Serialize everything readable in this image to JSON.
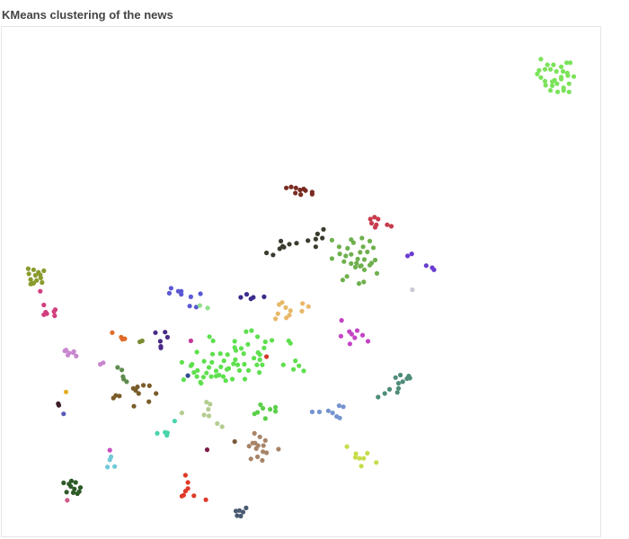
{
  "chart_data": {
    "type": "scatter",
    "title": "KMeans clustering of the news",
    "xlabel": "",
    "ylabel": "",
    "xlim": [
      0,
      100
    ],
    "ylim": [
      0,
      100
    ],
    "grid": false,
    "legend": "none",
    "series": [
      {
        "color": "#7be35a",
        "x": [
          93.2,
          94.1,
          94.7,
          89.8,
          90.9,
          91.9,
          93.5,
          94.2,
          89.5,
          90.5,
          91.4,
          92.4,
          93.2,
          94.3,
          95.3,
          89.8,
          90.5,
          91.7,
          92.1,
          93.2,
          94.5,
          90.6,
          91.7,
          92.5,
          93.6,
          91.4,
          92.6,
          93.6,
          94.5,
          89.2
        ],
        "y": [
          92.2,
          93.0,
          93.0,
          93.7,
          92.6,
          92.6,
          91.3,
          91.0,
          91.5,
          91.7,
          91.7,
          91.3,
          90.2,
          90.5,
          90.3,
          90.1,
          89.4,
          89.3,
          89.6,
          89.8,
          88.9,
          88.6,
          88.5,
          88.9,
          88.1,
          87.6,
          87.3,
          87.6,
          87.3,
          90.8
        ]
      },
      {
        "color": "#7a2c22",
        "x": [
          47.4,
          48.2,
          49.0,
          49.7,
          50.3,
          48.9,
          49.8,
          50.6,
          51.7,
          51.7
        ],
        "y": [
          68.5,
          68.7,
          68.5,
          68.1,
          68.3,
          67.5,
          67.2,
          68.0,
          67.7,
          67.3
        ]
      },
      {
        "color": "#c83c4e",
        "x": [
          61.4,
          62.1,
          62.7,
          61.6,
          62.4,
          64.2,
          64.9,
          62.2
        ],
        "y": [
          62.4,
          62.8,
          62.4,
          61.6,
          61.3,
          61.3,
          61.0,
          60.8
        ]
      },
      {
        "color": "#3a3a2e",
        "x": [
          53.6,
          52.6,
          52.3,
          53.4,
          51.0,
          52.3,
          49.1,
          47.9,
          46.8,
          46.3,
          47.0,
          46.5,
          44.1,
          45.2
        ],
        "y": [
          60.4,
          59.5,
          58.5,
          58.7,
          58.2,
          57.0,
          57.7,
          57.5,
          57.1,
          56.6,
          56.9,
          58.1,
          55.8,
          55.4
        ]
      },
      {
        "color": "#6fb04e",
        "x": [
          55.0,
          56.2,
          58.2,
          60.0,
          61.3,
          58.6,
          60.2,
          57.6,
          59.7,
          60.9,
          56.3,
          57.3,
          58.2,
          59.3,
          60.4,
          61.9,
          55.0,
          57.0,
          58.2,
          59.1,
          59.9,
          61.3,
          62.2,
          58.9,
          59.7,
          60.4,
          62.5,
          57.5,
          56.8,
          59.5,
          60.3,
          61.6
        ],
        "y": [
          58.3,
          57.0,
          58.4,
          58.7,
          58.1,
          57.8,
          57.0,
          56.7,
          55.9,
          56.0,
          55.6,
          55.2,
          55.5,
          54.6,
          54.5,
          56.8,
          54.7,
          54.1,
          53.7,
          53.8,
          53.3,
          53.4,
          54.4,
          53.0,
          53.2,
          52.5,
          51.8,
          51.2,
          50.5,
          49.8,
          50.1,
          53.8
        ]
      },
      {
        "color": "#6a3cd1",
        "x": [
          67.6,
          68.3,
          70.7,
          71.7,
          72.0
        ],
        "y": [
          55.2,
          55.6,
          53.3,
          52.9,
          52.5
        ]
      },
      {
        "color": "#c8c8d6",
        "x": [
          68.4
        ],
        "y": [
          48.6
        ]
      },
      {
        "color": "#8a9a2c",
        "x": [
          4.4,
          5.3,
          6.1,
          7.0,
          4.5,
          5.6,
          6.4,
          4.8,
          6.5,
          5.3,
          6.7,
          5.8,
          5.1,
          4.8
        ],
        "y": [
          52.7,
          52.5,
          52.0,
          52.3,
          51.7,
          51.4,
          51.5,
          50.6,
          50.9,
          49.9,
          50.0,
          50.4,
          49.8,
          49.7
        ]
      },
      {
        "color": "#d23e7e",
        "x": [
          6.4,
          7.0,
          7.3,
          7.5,
          8.7,
          8.9,
          8.8,
          7.0
        ],
        "y": [
          48.3,
          45.6,
          44.2,
          43.9,
          44.3,
          44.7,
          43.5,
          43.7
        ]
      },
      {
        "color": "#5a58d4",
        "x": [
          28.2,
          27.9,
          29.4,
          29.9,
          31.5,
          31.3,
          32.4,
          33.1,
          29.9
        ],
        "y": [
          48.9,
          47.9,
          48.3,
          47.7,
          47.2,
          45.4,
          45.2,
          47.8,
          48.3
        ]
      },
      {
        "color": "#3c2a8c",
        "x": [
          39.8,
          40.8,
          41.5,
          41.9,
          43.7
        ],
        "y": [
          47.1,
          47.7,
          46.8,
          47.1,
          47.2
        ]
      },
      {
        "color": "#8fe08a",
        "x": [
          34.3,
          33.0
        ],
        "y": [
          45.0,
          45.5
        ]
      },
      {
        "color": "#e8b868",
        "x": [
          46.7,
          46.2,
          50.1,
          51.1,
          47.3,
          48.1,
          47.9,
          47.4,
          46.0,
          50.0,
          45.6
        ],
        "y": [
          46.1,
          45.7,
          45.9,
          45.3,
          45.1,
          44.5,
          43.6,
          43.1,
          43.9,
          44.4,
          42.9
        ]
      },
      {
        "color": "#c444c4",
        "x": [
          56.6,
          57.9,
          59.2,
          58.3,
          58.8,
          60.1,
          56.5,
          61.0,
          58.0
        ],
        "y": [
          42.6,
          40.4,
          40.6,
          39.9,
          39.2,
          39.7,
          39.5,
          38.5,
          38.0
        ]
      },
      {
        "color": "#e06a2a",
        "x": [
          18.4,
          19.9,
          20.1,
          20.5
        ],
        "y": [
          40.2,
          39.3,
          38.9,
          39.0
        ]
      },
      {
        "color": "#4a2a86",
        "x": [
          25.6,
          27.2,
          27.6,
          26.4,
          26.5,
          26.5
        ],
        "y": [
          40.2,
          40.3,
          39.3,
          38.5,
          37.2,
          37.5
        ]
      },
      {
        "color": "#5ee04e",
        "x": [
          34.6,
          35.2,
          40.7,
          41.6,
          42.6,
          38.8,
          39.9,
          41.0,
          43.9,
          38.8,
          48.1,
          47.8,
          39.0,
          40.3,
          43.0,
          32.5,
          35.1,
          36.4,
          37.6,
          42.7,
          42.0,
          31.7,
          33.7,
          35.0,
          37.0,
          38.9,
          40.4,
          42.5,
          43.4,
          49.5,
          48.9,
          50.3,
          34.5,
          36.5,
          37.8,
          38.6,
          39.3,
          43.0,
          30.0,
          31.5,
          32.6,
          35.7,
          36.9,
          39.6,
          46.9,
          48.6,
          34.1,
          36.2,
          35.7,
          34.9,
          37.3,
          32.0,
          33.6,
          41.1,
          42.9,
          37.5,
          38.4,
          40.5,
          33.1,
          45.0,
          43.7,
          30.3,
          32.5,
          33.2
        ],
        "y": [
          39.4,
          38.6,
          40.4,
          40.6,
          39.4,
          38.5,
          37.1,
          37.9,
          38.4,
          37.3,
          38.1,
          38.6,
          36.7,
          36.1,
          35.9,
          36.4,
          36.0,
          36.1,
          35.9,
          36.3,
          35.2,
          34.0,
          34.6,
          34.4,
          34.7,
          34.9,
          34.0,
          33.9,
          33.9,
          33.7,
          34.7,
          32.7,
          33.4,
          33.5,
          33.2,
          34.1,
          33.9,
          34.9,
          34.4,
          33.7,
          32.8,
          32.7,
          31.6,
          32.8,
          33.9,
          33.0,
          32.3,
          31.9,
          31.7,
          31.6,
          30.8,
          32.4,
          31.5,
          32.8,
          32.4,
          33.0,
          31.1,
          31.1,
          30.5,
          38.7,
          37.2,
          31.0,
          31.6,
          30.3
        ]
      },
      {
        "color": "#c8379a",
        "x": [
          31.5
        ],
        "y": [
          38.6
        ]
      },
      {
        "color": "#7a8c32",
        "x": [
          23.0,
          23.4
        ],
        "y": [
          38.4,
          38.6
        ]
      },
      {
        "color": "#d3392b",
        "x": [
          44.1
        ],
        "y": [
          35.5
        ]
      },
      {
        "color": "#c887d0",
        "x": [
          10.5,
          11.2,
          11.9,
          12.4,
          11.0,
          16.4,
          16.9,
          12.0,
          10.7
        ],
        "y": [
          36.6,
          36.2,
          36.3,
          35.6,
          35.8,
          34.0,
          34.3,
          36.5,
          36.8
        ]
      },
      {
        "color": "#2e4d8e",
        "x": [
          31.0
        ],
        "y": [
          31.8
        ]
      },
      {
        "color": "#5e8c4e",
        "x": [
          19.3,
          20.0,
          20.2,
          20.3,
          20.8
        ],
        "y": [
          33.4,
          32.9,
          31.6,
          31.1,
          30.6
        ]
      },
      {
        "color": "#7a5c2a",
        "x": [
          22.6,
          23.6,
          24.6,
          21.9,
          22.3,
          25.7,
          22.8,
          19.0,
          19.6,
          18.6,
          24.5,
          22.0
        ],
        "y": [
          29.6,
          29.9,
          29.8,
          29.3,
          28.9,
          28.3,
          28.3,
          27.9,
          27.8,
          27.4,
          26.7,
          25.8
        ]
      },
      {
        "color": "#4e8c7a",
        "x": [
          65.6,
          66.4,
          66.8,
          68.0,
          66.1,
          64.6,
          65.9,
          63.8,
          62.7,
          67.8,
          66.1,
          67.5
        ],
        "y": [
          31.4,
          31.9,
          30.6,
          31.3,
          29.3,
          29.1,
          28.5,
          28.3,
          27.6,
          31.7,
          30.3,
          31.2
        ]
      },
      {
        "color": "#e4b02a",
        "x": [
          10.7
        ],
        "y": [
          28.6
        ]
      },
      {
        "color": "#3a1e28",
        "x": [
          9.4,
          9.5
        ],
        "y": [
          26.3,
          26.0
        ]
      },
      {
        "color": "#5a5ab8",
        "x": [
          10.3
        ],
        "y": [
          24.3
        ]
      },
      {
        "color": "#5ad048",
        "x": [
          43.1,
          43.5,
          42.6,
          44.7,
          45.6,
          45.6,
          43.9,
          42.1
        ],
        "y": [
          26.1,
          25.4,
          24.6,
          25.2,
          25.6,
          24.8,
          23.4,
          24.3
        ]
      },
      {
        "color": "#b4cc90",
        "x": [
          34.1,
          34.7,
          34.4,
          33.7,
          34.5,
          35.9,
          36.7,
          30.0
        ],
        "y": [
          26.6,
          26.2,
          25.2,
          24.1,
          23.9,
          22.4,
          21.8,
          24.5
        ]
      },
      {
        "color": "#7494d0",
        "x": [
          56.2,
          56.9,
          51.7,
          52.9,
          54.4,
          55.1,
          55.8,
          56.3
        ],
        "y": [
          25.9,
          25.7,
          24.7,
          24.7,
          24.9,
          24.5,
          23.8,
          23.5
        ]
      },
      {
        "color": "#48d4ac",
        "x": [
          28.8,
          27.2,
          25.9,
          27.6,
          27.5
        ],
        "y": [
          22.9,
          20.7,
          20.5,
          20.6,
          20.1
        ]
      },
      {
        "color": "#a88468",
        "x": [
          42.1,
          43.0,
          42.2,
          43.9,
          41.8,
          42.7,
          43.6,
          41.2,
          42.4,
          46.1,
          43.5,
          44.1,
          41.5,
          42.6,
          43.4
        ],
        "y": [
          20.5,
          19.8,
          18.6,
          19.1,
          18.6,
          18.1,
          18.1,
          18.0,
          17.5,
          17.4,
          16.9,
          16.7,
          15.5,
          15.9,
          15.2
        ]
      },
      {
        "color": "#7a5a3a",
        "x": [
          38.8
        ],
        "y": [
          18.9
        ]
      },
      {
        "color": "#7b1e48",
        "x": [
          34.2
        ],
        "y": [
          17.3
        ]
      },
      {
        "color": "#c8dc4a",
        "x": [
          57.5,
          59.0,
          60.9,
          58.9,
          59.6,
          60.3,
          59.9,
          62.4
        ],
        "y": [
          17.9,
          16.5,
          16.6,
          15.8,
          15.6,
          15.6,
          14.1,
          14.8
        ]
      },
      {
        "color": "#c84cc0",
        "x": [
          18.0
        ],
        "y": [
          17.2
        ]
      },
      {
        "color": "#70c8d8",
        "x": [
          18.2,
          18.0,
          17.6,
          18.8
        ],
        "y": [
          15.9,
          15.3,
          13.9,
          14.0
        ]
      },
      {
        "color": "#e03a28",
        "x": [
          30.6,
          31.0,
          31.0,
          30.6,
          30.3,
          30.0,
          32.0,
          34.0
        ],
        "y": [
          12.3,
          10.9,
          9.7,
          9.2,
          8.4,
          8.2,
          8.3,
          7.5
        ]
      },
      {
        "color": "#2e5a28",
        "x": [
          10.3,
          11.2,
          11.6,
          12.3,
          13.1,
          11.5,
          12.1,
          12.9,
          10.8,
          11.9,
          12.6
        ],
        "y": [
          10.8,
          10.6,
          11.2,
          10.9,
          9.9,
          10.1,
          9.6,
          9.1,
          9.0,
          8.9,
          8.7
        ]
      },
      {
        "color": "#d25a8a",
        "x": [
          10.9
        ],
        "y": [
          7.4
        ]
      },
      {
        "color": "#4a5a72",
        "x": [
          40.7,
          39.0,
          39.6,
          40.2,
          39.2,
          39.8
        ],
        "y": [
          5.9,
          5.3,
          5.4,
          5.1,
          4.4,
          4.3
        ]
      }
    ]
  }
}
